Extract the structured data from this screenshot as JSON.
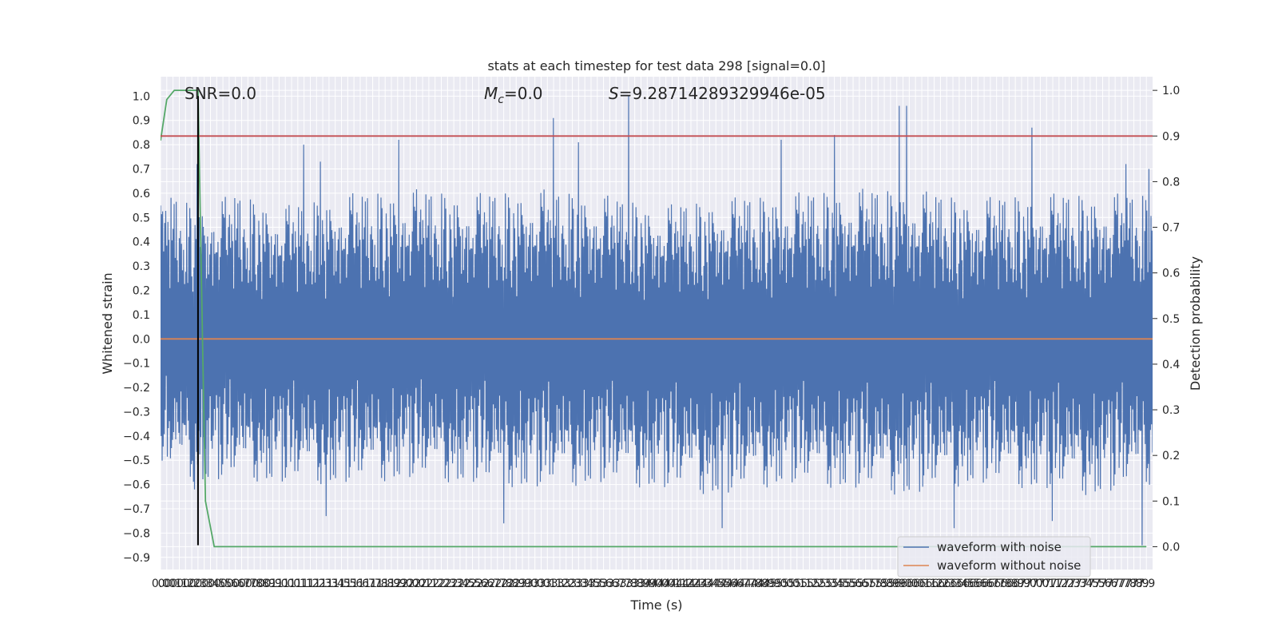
{
  "chart_data": {
    "type": "line",
    "title": "stats at each timestep for test data 298 [signal=0.0]",
    "xlabel": "Time (s)",
    "ylabel": "Whitened strain",
    "y2label": "Detection probability",
    "xlim": [
      0.0,
      7.95
    ],
    "ylim": [
      -0.95,
      1.08
    ],
    "y2lim": [
      -0.05,
      1.03
    ],
    "x_ticks": [
      0.0,
      0.05,
      0.1,
      0.15,
      0.2,
      0.25,
      0.3,
      0.35,
      0.4,
      0.45,
      0.5,
      0.55,
      0.6,
      0.65,
      0.7,
      0.75,
      0.8,
      0.85,
      0.9,
      0.95,
      1.0,
      1.05,
      1.1,
      1.15,
      1.2,
      1.25,
      1.3,
      1.35,
      1.4,
      1.45,
      1.5,
      1.55,
      1.6,
      1.65,
      1.7,
      1.75,
      1.8,
      1.85,
      1.9,
      1.95,
      2.0,
      2.05,
      2.1,
      2.15,
      2.2,
      2.25,
      2.3,
      2.35,
      2.4,
      2.45,
      2.5,
      2.55,
      2.6,
      2.65,
      2.7,
      2.75,
      2.8,
      2.85,
      2.9,
      2.95,
      3.0,
      3.05,
      3.1,
      3.15,
      3.2,
      3.25,
      3.3,
      3.35,
      3.4,
      3.45,
      3.5,
      3.55,
      3.6,
      3.65,
      3.7,
      3.75,
      3.8,
      3.85,
      3.9,
      3.95,
      4.0,
      4.05,
      4.1,
      4.15,
      4.2,
      4.25,
      4.3,
      4.35,
      4.4,
      4.45,
      4.5,
      4.55,
      4.6,
      4.65,
      4.7,
      4.75,
      4.8,
      4.85,
      4.9,
      4.95,
      5.0,
      5.05,
      5.1,
      5.15,
      5.2,
      5.25,
      5.3,
      5.35,
      5.4,
      5.45,
      5.5,
      5.55,
      5.6,
      5.65,
      5.7,
      5.75,
      5.8,
      5.85,
      5.9,
      5.95,
      6.0,
      6.05,
      6.1,
      6.15,
      6.2,
      6.25,
      6.3,
      6.35,
      6.4,
      6.45,
      6.5,
      6.55,
      6.6,
      6.65,
      6.7,
      6.75,
      6.8,
      6.85,
      6.9,
      6.95,
      7.0,
      7.05,
      7.1,
      7.15,
      7.2,
      7.25,
      7.3,
      7.35,
      7.4,
      7.45,
      7.5,
      7.55,
      7.6,
      7.65,
      7.7,
      7.75,
      7.8,
      7.85,
      7.9
    ],
    "x_tick_labels": [
      "0.0",
      "0.0",
      "0.1",
      "0.1",
      "0.2",
      "0.2",
      "0.3",
      "0.3",
      "0.4",
      "0.5",
      "0.5",
      "0.6",
      "0.6",
      "0.7",
      "0.7",
      "0.8",
      "0.8",
      "0.9",
      "0.9",
      "1.0",
      "1.0",
      "1.0",
      "1.1",
      "1.1",
      "1.2",
      "1.2",
      "1.3",
      "1.3",
      "1.4",
      "1.5",
      "1.5",
      "1.6",
      "1.6",
      "1.7",
      "1.7",
      "1.8",
      "1.8",
      "1.9",
      "1.9",
      "2.0",
      "2.0",
      "2.0",
      "2.1",
      "2.1",
      "2.2",
      "2.2",
      "2.3",
      "2.3",
      "2.4",
      "2.5",
      "2.5",
      "2.6",
      "2.6",
      "2.7",
      "2.7",
      "2.8",
      "2.8",
      "2.9",
      "2.9",
      "3.0",
      "3.0",
      "3.0",
      "3.1",
      "3.1",
      "3.2",
      "3.2",
      "3.3",
      "3.3",
      "3.4",
      "3.5",
      "3.5",
      "3.6",
      "3.6",
      "3.7",
      "3.7",
      "3.8",
      "3.8",
      "3.9",
      "3.9",
      "4.0",
      "4.0",
      "4.0",
      "4.1",
      "4.1",
      "4.2",
      "4.2",
      "4.3",
      "4.3",
      "4.4",
      "4.5",
      "4.5",
      "4.6",
      "4.6",
      "4.7",
      "4.7",
      "4.8",
      "4.8",
      "4.9",
      "4.9",
      "5.0",
      "5.0",
      "5.0",
      "5.1",
      "5.1",
      "5.2",
      "5.2",
      "5.3",
      "5.3",
      "5.4",
      "5.5",
      "5.5",
      "5.6",
      "5.6",
      "5.7",
      "5.7",
      "5.8",
      "5.8",
      "5.9",
      "5.9",
      "6.0",
      "6.0",
      "6.0",
      "6.1",
      "6.1",
      "6.2",
      "6.2",
      "6.3",
      "6.3",
      "6.4",
      "6.5",
      "6.5",
      "6.6",
      "6.6",
      "6.7",
      "6.7",
      "6.8",
      "6.8",
      "6.9",
      "6.9",
      "7.0",
      "7.0",
      "7.0",
      "7.1",
      "7.1",
      "7.2",
      "7.2",
      "7.3",
      "7.3",
      "7.4",
      "7.5",
      "7.5",
      "7.6",
      "7.6",
      "7.7",
      "7.7",
      "7.8",
      "7.8",
      "7.9",
      "7.9"
    ],
    "y_ticks": [
      -0.9,
      -0.8,
      -0.7,
      -0.6,
      -0.5,
      -0.4,
      -0.3,
      -0.2,
      -0.1,
      0.0,
      0.1,
      0.2,
      0.3,
      0.4,
      0.5,
      0.6,
      0.7,
      0.8,
      0.9,
      1.0
    ],
    "y_tick_labels": [
      "−0.9",
      "−0.8",
      "−0.7",
      "−0.6",
      "−0.5",
      "−0.4",
      "−0.3",
      "−0.2",
      "−0.1",
      "0.0",
      "0.1",
      "0.2",
      "0.3",
      "0.4",
      "0.5",
      "0.6",
      "0.7",
      "0.8",
      "0.9",
      "1.0"
    ],
    "y2_ticks": [
      0.0,
      0.1,
      0.2,
      0.3,
      0.4,
      0.5,
      0.6,
      0.7,
      0.8,
      0.9,
      1.0
    ],
    "y2_tick_labels": [
      "0.0",
      "0.1",
      "0.2",
      "0.3",
      "0.4",
      "0.5",
      "0.6",
      "0.7",
      "0.8",
      "0.9",
      "1.0"
    ],
    "grid": true,
    "legend_position": "bottom-right",
    "annotations": {
      "snr": "SNR=0.0",
      "mc": "=0.0",
      "mc_symbol": "M",
      "mc_sub": "c",
      "s": "=9.28714289329946e-05",
      "s_symbol": "S"
    },
    "series": [
      {
        "name": "waveform with noise",
        "axis": "left",
        "color": "#4c72b0",
        "kind": "noise",
        "y_range": [
          -0.85,
          1.0
        ],
        "envelope": {
          "x": [
            0.0,
            0.3,
            0.6,
            1.0,
            1.5,
            2.0,
            2.5,
            3.0,
            3.5,
            4.0,
            4.5,
            5.0,
            5.5,
            6.0,
            6.5,
            7.0,
            7.5,
            7.95
          ],
          "upper": [
            0.62,
            0.55,
            0.6,
            0.55,
            0.6,
            0.62,
            0.6,
            0.62,
            0.6,
            0.55,
            0.58,
            0.6,
            0.62,
            0.62,
            0.58,
            0.6,
            0.6,
            0.6
          ],
          "lower": [
            -0.52,
            -0.6,
            -0.58,
            -0.6,
            -0.6,
            -0.58,
            -0.6,
            -0.62,
            -0.6,
            -0.62,
            -0.65,
            -0.6,
            -0.62,
            -0.65,
            -0.6,
            -0.62,
            -0.65,
            -0.6
          ]
        },
        "peaks": [
          {
            "x": 0.29,
            "y": 0.72
          },
          {
            "x": 1.15,
            "y": 0.8
          },
          {
            "x": 1.28,
            "y": 0.73
          },
          {
            "x": 1.91,
            "y": 0.82
          },
          {
            "x": 3.15,
            "y": 0.91
          },
          {
            "x": 3.35,
            "y": 0.81
          },
          {
            "x": 3.75,
            "y": 1.0
          },
          {
            "x": 4.97,
            "y": 0.82
          },
          {
            "x": 5.4,
            "y": 0.84
          },
          {
            "x": 5.92,
            "y": 0.96
          },
          {
            "x": 5.98,
            "y": 0.96
          },
          {
            "x": 6.98,
            "y": 0.87
          },
          {
            "x": 7.74,
            "y": 0.72
          },
          {
            "x": 7.92,
            "y": 0.7
          }
        ],
        "troughs": [
          {
            "x": 0.27,
            "y": -0.62
          },
          {
            "x": 1.33,
            "y": -0.73
          },
          {
            "x": 2.75,
            "y": -0.76
          },
          {
            "x": 4.5,
            "y": -0.78
          },
          {
            "x": 6.36,
            "y": -0.78
          },
          {
            "x": 7.15,
            "y": -0.75
          },
          {
            "x": 7.87,
            "y": -0.85
          }
        ]
      },
      {
        "name": "waveform without noise",
        "axis": "left",
        "color": "#dd8452",
        "x": [
          0.0,
          7.95
        ],
        "y": [
          0.0,
          0.0
        ]
      },
      {
        "axis": "right",
        "color": "#55a868",
        "x": [
          0.0,
          0.05,
          0.11,
          0.3,
          0.36,
          0.43,
          7.9
        ],
        "y": [
          0.89,
          0.98,
          1.0,
          1.0,
          0.1,
          0.0,
          0.0
        ]
      },
      {
        "axis": "right",
        "color": "#c44e52",
        "x": [
          0.0,
          7.95
        ],
        "y": [
          0.9,
          0.9
        ]
      },
      {
        "axis": "left",
        "color": "#000000",
        "x": [
          0.3,
          0.3
        ],
        "y": [
          -0.85,
          1.0
        ]
      }
    ]
  }
}
